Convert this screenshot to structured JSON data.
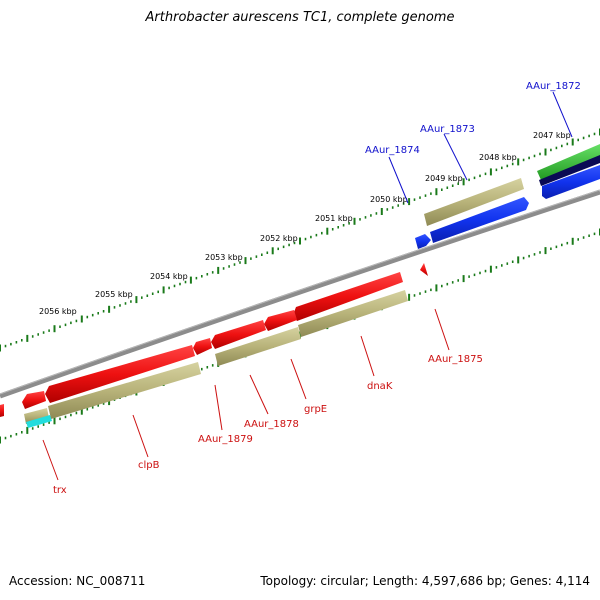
{
  "title": "Arthrobacter aurescens TC1, complete genome",
  "accession_text": "Accession: NC_008711",
  "summary_text": "Topology: circular; Length: 4,597,686 bp; Genes: 4,114",
  "colors": {
    "backbone": "#8c8c8c",
    "tick": "#1a7a1a",
    "forward_label": "#1010cc",
    "reverse_label": "#cc1010",
    "gene_red": "#ee1111",
    "gene_blue": "#1133ee",
    "gene_navy": "#0a0a55",
    "gene_green": "#33cc33",
    "feature_khaki": "#b8b37a",
    "feature_cyan": "#22dddd"
  },
  "kbp_labels": [
    "2047 kbp",
    "2048 kbp",
    "2049 kbp",
    "2050 kbp",
    "2051 kbp",
    "2052 kbp",
    "2053 kbp",
    "2054 kbp",
    "2055 kbp",
    "2056 kbp"
  ],
  "forward_gene_labels": [
    "AAur_1872",
    "AAur_1873",
    "AAur_1874"
  ],
  "reverse_gene_labels": [
    "AAur_1875",
    "dnaK",
    "grpE",
    "AAur_1878",
    "AAur_1879",
    "clpB",
    "trx"
  ]
}
